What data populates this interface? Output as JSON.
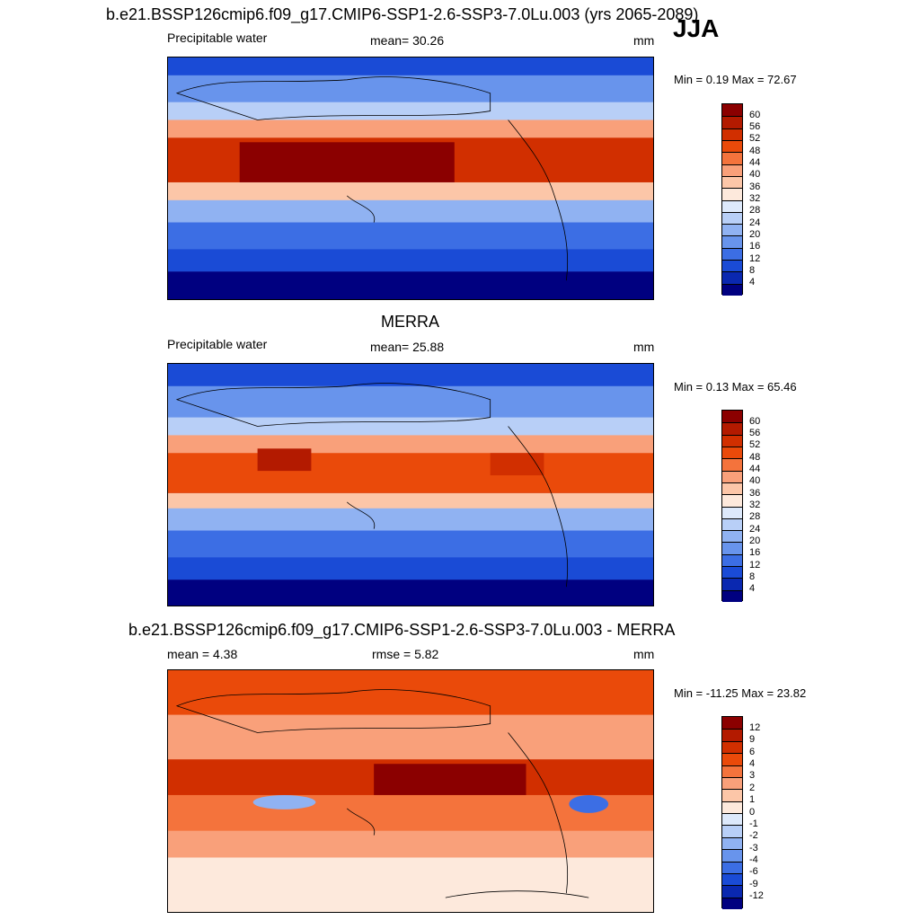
{
  "header": {
    "title": "b.e21.BSSP126cmip6.f09_g17.CMIP6-SSP1-2.6-SSP3-7.0Lu.003 (yrs 2065-2089)",
    "season": "JJA"
  },
  "panels": [
    {
      "id": "model",
      "title": "",
      "left_label": "Precipitable water",
      "center_label": "mean=  30.26",
      "units": "mm",
      "minmax": "Min =   0.19 Max =  72.67",
      "colorbar": {
        "ticks": [
          "60",
          "56",
          "52",
          "48",
          "44",
          "40",
          "36",
          "32",
          "28",
          "24",
          "20",
          "16",
          "12",
          "8",
          "4"
        ],
        "colors": [
          "#8b0000",
          "#b31a00",
          "#d12f00",
          "#ea4a0a",
          "#f4733c",
          "#f9a07a",
          "#fcc6a8",
          "#fde9dc",
          "#dde9fb",
          "#b8cff7",
          "#90b2f2",
          "#6894ec",
          "#3c6ee4",
          "#1a4bd6",
          "#0a28b0",
          "#000080"
        ]
      }
    },
    {
      "id": "obs",
      "title": "MERRA",
      "left_label": "Precipitable water",
      "center_label": "mean=  25.88",
      "units": "mm",
      "minmax": "Min =   0.13 Max =  65.46",
      "colorbar": {
        "ticks": [
          "60",
          "56",
          "52",
          "48",
          "44",
          "40",
          "36",
          "32",
          "28",
          "24",
          "20",
          "16",
          "12",
          "8",
          "4"
        ],
        "colors": [
          "#8b0000",
          "#b31a00",
          "#d12f00",
          "#ea4a0a",
          "#f4733c",
          "#f9a07a",
          "#fcc6a8",
          "#fde9dc",
          "#dde9fb",
          "#b8cff7",
          "#90b2f2",
          "#6894ec",
          "#3c6ee4",
          "#1a4bd6",
          "#0a28b0",
          "#000080"
        ]
      }
    },
    {
      "id": "diff",
      "title": "b.e21.BSSP126cmip6.f09_g17.CMIP6-SSP1-2.6-SSP3-7.0Lu.003 - MERRA",
      "left_label": "mean =   4.38",
      "center_label": "rmse =   5.82",
      "units": "mm",
      "minmax": "Min = -11.25 Max =  23.82",
      "colorbar": {
        "ticks": [
          "12",
          "9",
          "6",
          "4",
          "3",
          "2",
          "1",
          "0",
          "-1",
          "-2",
          "-3",
          "-4",
          "-6",
          "-9",
          "-12"
        ],
        "colors": [
          "#8b0000",
          "#b31a00",
          "#d12f00",
          "#ea4a0a",
          "#f4733c",
          "#f9a07a",
          "#fcc6a8",
          "#fde9dc",
          "#dde9fb",
          "#b8cff7",
          "#90b2f2",
          "#6894ec",
          "#3c6ee4",
          "#1a4bd6",
          "#0a28b0",
          "#000080"
        ]
      }
    }
  ]
}
